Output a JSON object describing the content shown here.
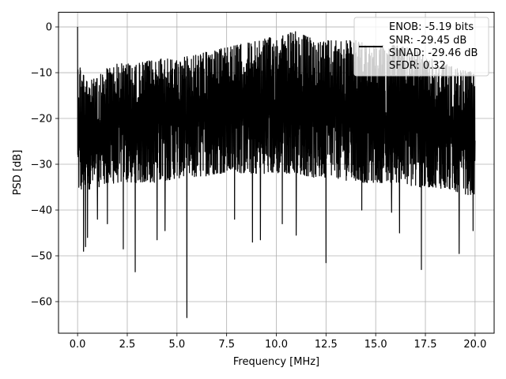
{
  "chart_data": {
    "type": "line",
    "title": "",
    "xlabel": "Frequency [MHz]",
    "ylabel": "PSD [dB]",
    "xlim": [
      -0.96,
      20.96
    ],
    "ylim": [
      -66.9,
      3.2
    ],
    "xticks": [
      0.0,
      2.5,
      5.0,
      7.5,
      10.0,
      12.5,
      15.0,
      17.5,
      20.0
    ],
    "xtick_labels": [
      "0.0",
      "2.5",
      "5.0",
      "7.5",
      "10.0",
      "12.5",
      "15.0",
      "17.5",
      "20.0"
    ],
    "yticks": [
      0,
      -10,
      -20,
      -30,
      -40,
      -50,
      -60
    ],
    "ytick_labels": [
      "0",
      "−10",
      "−20",
      "−30",
      "−40",
      "−50",
      "−60"
    ],
    "grid": true,
    "legend_position": "top-right",
    "line_color": "#000000",
    "series": [
      {
        "name": "",
        "description": "dense noisy power spectral density trace spanning 0 to 20 MHz",
        "x_range": [
          0.0,
          20.0
        ],
        "peak": {
          "x": 0.0,
          "y": 0.0
        },
        "upper_envelope_points": [
          [
            0.05,
            -7
          ],
          [
            0.5,
            -12
          ],
          [
            1.0,
            -11
          ],
          [
            1.5,
            -9
          ],
          [
            2.0,
            -8
          ],
          [
            3.0,
            -8
          ],
          [
            4.0,
            -7
          ],
          [
            5.0,
            -7
          ],
          [
            6.0,
            -6
          ],
          [
            7.0,
            -5
          ],
          [
            8.0,
            -4
          ],
          [
            9.0,
            -3
          ],
          [
            10.0,
            -2
          ],
          [
            11.0,
            -1
          ],
          [
            12.0,
            -3
          ],
          [
            13.0,
            -3
          ],
          [
            14.0,
            -3
          ],
          [
            15.0,
            -4
          ],
          [
            16.0,
            -4
          ],
          [
            17.0,
            -5
          ],
          [
            18.0,
            -7
          ],
          [
            19.0,
            -9
          ],
          [
            20.0,
            -10
          ]
        ],
        "lower_envelope_points": [
          [
            0.05,
            -36
          ],
          [
            1.0,
            -35
          ],
          [
            2.0,
            -34
          ],
          [
            3.0,
            -34
          ],
          [
            4.0,
            -34
          ],
          [
            5.0,
            -33
          ],
          [
            6.0,
            -33
          ],
          [
            7.0,
            -32
          ],
          [
            8.0,
            -32
          ],
          [
            9.0,
            -32
          ],
          [
            10.0,
            -32
          ],
          [
            11.0,
            -32
          ],
          [
            12.0,
            -33
          ],
          [
            13.0,
            -33
          ],
          [
            14.0,
            -34
          ],
          [
            15.0,
            -34
          ],
          [
            16.0,
            -34
          ],
          [
            17.0,
            -35
          ],
          [
            18.0,
            -35
          ],
          [
            19.0,
            -36
          ],
          [
            20.0,
            -37
          ]
        ],
        "deep_dips": [
          [
            0.3,
            -49
          ],
          [
            0.4,
            -48
          ],
          [
            0.5,
            -46
          ],
          [
            1.0,
            -42
          ],
          [
            1.5,
            -43
          ],
          [
            2.3,
            -48.5
          ],
          [
            2.9,
            -53.5
          ],
          [
            4.0,
            -46.5
          ],
          [
            4.4,
            -44.5
          ],
          [
            5.5,
            -63.5
          ],
          [
            7.9,
            -42
          ],
          [
            8.8,
            -47
          ],
          [
            9.2,
            -46.5
          ],
          [
            10.3,
            -43
          ],
          [
            11.0,
            -45.5
          ],
          [
            12.5,
            -51.5
          ],
          [
            14.3,
            -40
          ],
          [
            15.8,
            -40.5
          ],
          [
            16.2,
            -45
          ],
          [
            17.3,
            -53
          ],
          [
            19.2,
            -49.5
          ],
          [
            19.9,
            -44.5
          ]
        ]
      }
    ]
  },
  "legend": {
    "lines": [
      "ENOB: -5.19 bits",
      "SNR: -29.45 dB",
      "SINAD: -29.46 dB",
      "SFDR: 0.32"
    ]
  }
}
